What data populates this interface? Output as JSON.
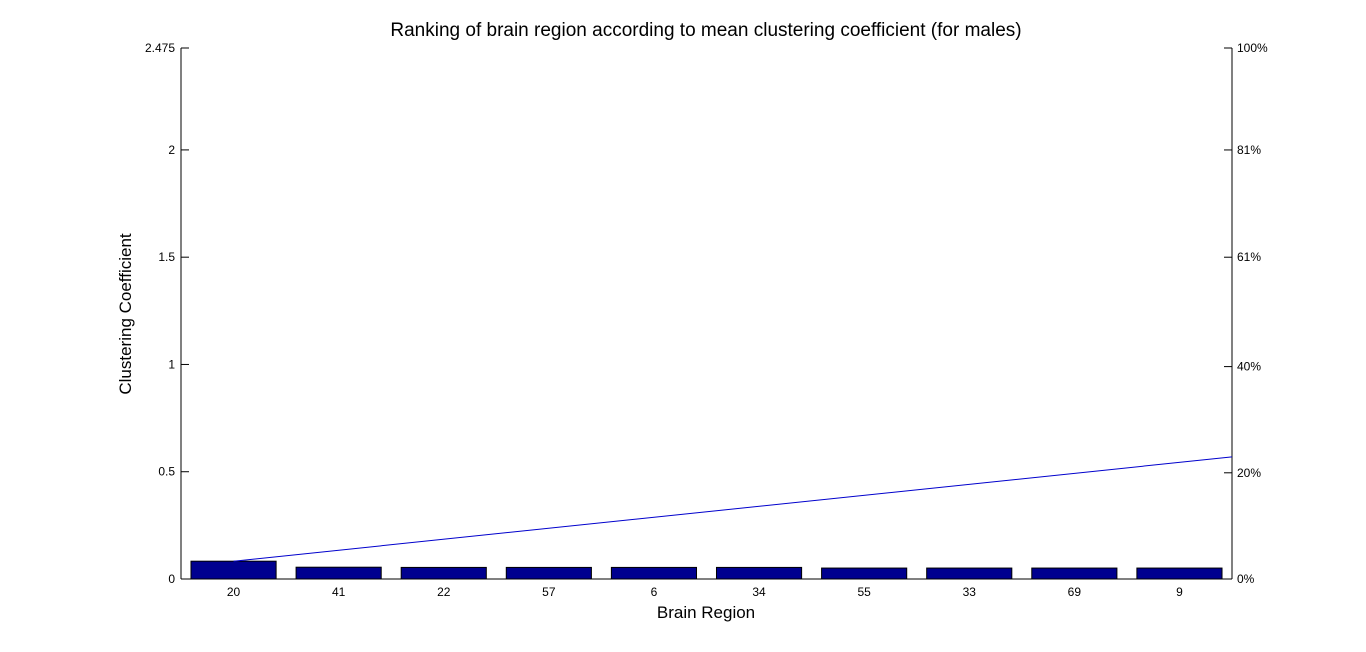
{
  "chart_data": {
    "type": "bar",
    "title": "Ranking of brain region according to mean clustering coefficient (for males)",
    "xlabel": "Brain Region",
    "ylabel": "Clustering Coefficient",
    "categories": [
      "20",
      "41",
      "22",
      "57",
      "6",
      "34",
      "55",
      "33",
      "69",
      "9"
    ],
    "values": [
      0.083,
      0.055,
      0.054,
      0.054,
      0.054,
      0.054,
      0.051,
      0.051,
      0.051,
      0.051
    ],
    "ylim": [
      0,
      2.475
    ],
    "yticks": [
      "0",
      "0.5",
      "1",
      "1.5",
      "2",
      "2.475"
    ],
    "y2ticks": [
      "0%",
      "20%",
      "40%",
      "61%",
      "81%",
      "100%"
    ],
    "y2ticks_fraction": [
      0,
      0.2,
      0.4,
      0.606,
      0.808,
      1.0
    ],
    "cumulative_line": {
      "x_start": "20",
      "x_end": "9",
      "y2_start_fraction": 0.0335,
      "y2_end_fraction": 0.23
    },
    "bar_color": "#00008f",
    "line_color": "#0000cc",
    "grid": false
  }
}
